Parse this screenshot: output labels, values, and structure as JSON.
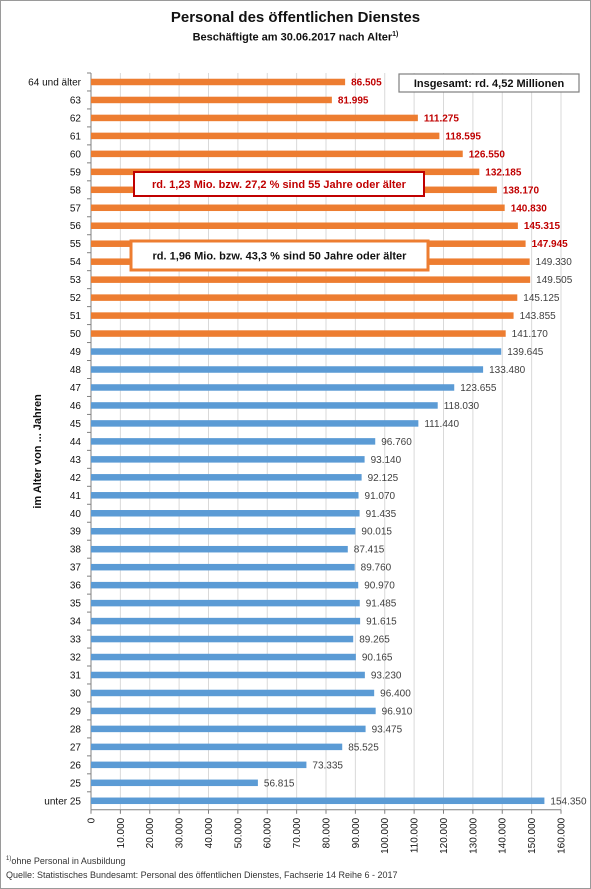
{
  "title": "Personal des öffentlichen Dienstes",
  "subtitle": "Beschäftigte  am 30.06.2017 nach  Alter",
  "subtitle_footnote_mark": "1)",
  "footnote_mark": "1)",
  "footnote": "ohne Personal in Ausbildung",
  "source": "Quelle: Statistisches Bundesamt: Personal des öffentlichen Dienstes, Fachserie 14 Reihe 6 - 2017",
  "colors": {
    "orange": "#ed7d31",
    "blue": "#5b9bd5",
    "darkred": "#c00000",
    "gray_label": "#404040",
    "grid": "#d9d9d9"
  },
  "chart_data": {
    "type": "bar",
    "orientation": "horizontal",
    "title": "Personal des öffentlichen Dienstes",
    "ylabel": "im Alter von ... Jahren",
    "xlabel": "",
    "xlim": [
      0,
      160000
    ],
    "xticks": [
      0,
      10000,
      20000,
      30000,
      40000,
      50000,
      60000,
      70000,
      80000,
      90000,
      100000,
      110000,
      120000,
      130000,
      140000,
      150000,
      160000
    ],
    "xtick_labels": [
      "0",
      "10.000",
      "20.000",
      "30.000",
      "40.000",
      "50.000",
      "60.000",
      "70.000",
      "80.000",
      "90.000",
      "100.000",
      "110.000",
      "120.000",
      "130.000",
      "140.000",
      "150.000",
      "160.000"
    ],
    "grid": true,
    "categories": [
      "64 und älter",
      "63",
      "62",
      "61",
      "60",
      "59",
      "58",
      "57",
      "56",
      "55",
      "54",
      "53",
      "52",
      "51",
      "50",
      "49",
      "48",
      "47",
      "46",
      "45",
      "44",
      "43",
      "42",
      "41",
      "40",
      "39",
      "38",
      "37",
      "36",
      "35",
      "34",
      "33",
      "32",
      "31",
      "30",
      "29",
      "28",
      "27",
      "26",
      "25",
      "unter 25"
    ],
    "values": [
      86505,
      81995,
      111275,
      118595,
      126550,
      132185,
      138170,
      140830,
      145315,
      147945,
      149330,
      149505,
      145125,
      143855,
      141170,
      139645,
      133480,
      123655,
      118030,
      111440,
      96760,
      93140,
      92125,
      91070,
      91435,
      90015,
      87415,
      89760,
      90970,
      91485,
      91615,
      89265,
      90165,
      93230,
      96400,
      96910,
      93475,
      85525,
      73335,
      56815,
      154350
    ],
    "value_labels": [
      "86.505",
      "81.995",
      "111.275",
      "118.595",
      "126.550",
      "132.185",
      "138.170",
      "140.830",
      "145.315",
      "147.945",
      "149.330",
      "149.505",
      "145.125",
      "143.855",
      "141.170",
      "139.645",
      "133.480",
      "123.655",
      "118.030",
      "111.440",
      "96.760",
      "93.140",
      "92.125",
      "91.070",
      "91.435",
      "90.015",
      "87.415",
      "89.760",
      "90.970",
      "91.485",
      "91.615",
      "89.265",
      "90.165",
      "93.230",
      "96.400",
      "96.910",
      "93.475",
      "85.525",
      "73.335",
      "56.815",
      "154.350"
    ],
    "orange_count": 15,
    "red_label_count": 10,
    "annotations": [
      {
        "text": "Insgesamt:  rd. 4,52 Millionen",
        "style": "gray"
      },
      {
        "text": "rd. 1,23 Mio.  bzw.  27,2 % sind 55 Jahre oder älter",
        "style": "red"
      },
      {
        "text": "rd. 1,96 Mio.  bzw.  43,3 % sind 50 Jahre oder älter",
        "style": "orange"
      }
    ]
  }
}
